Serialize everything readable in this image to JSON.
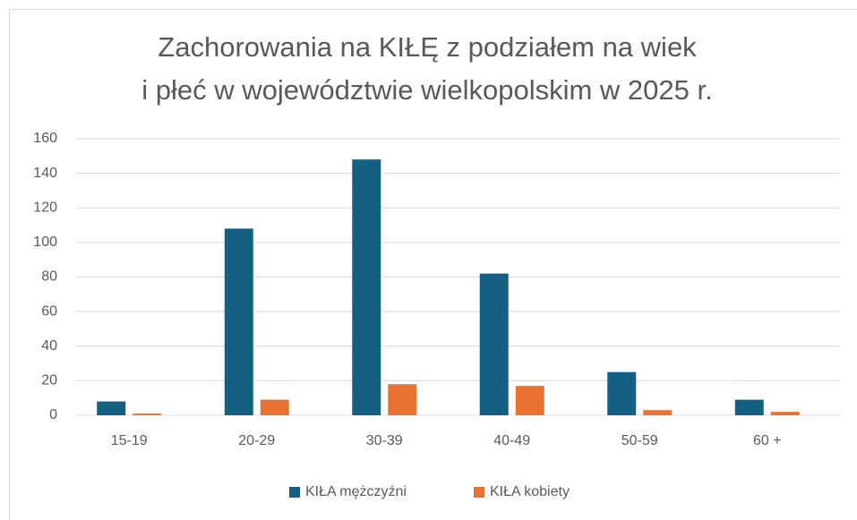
{
  "chart_data": {
    "type": "bar",
    "title": [
      "Zachorowania na KIŁĘ z podziałem na wiek",
      "i płeć w województwie wielkopolskim w 2025 r."
    ],
    "categories": [
      "15-19",
      "20-29",
      "30-39",
      "40-49",
      "50-59",
      "60 +"
    ],
    "series": [
      {
        "name": "KIŁA mężczyźni",
        "color": "#156082",
        "values": [
          8,
          108,
          148,
          82,
          25,
          9
        ]
      },
      {
        "name": "KIŁA kobiety",
        "color": "#e97132",
        "values": [
          1,
          9,
          18,
          17,
          3,
          2
        ]
      }
    ],
    "ylim": [
      0,
      160
    ],
    "yticks": [
      0,
      20,
      40,
      60,
      80,
      100,
      120,
      140,
      160
    ],
    "grid": true,
    "legend": "bottom"
  }
}
